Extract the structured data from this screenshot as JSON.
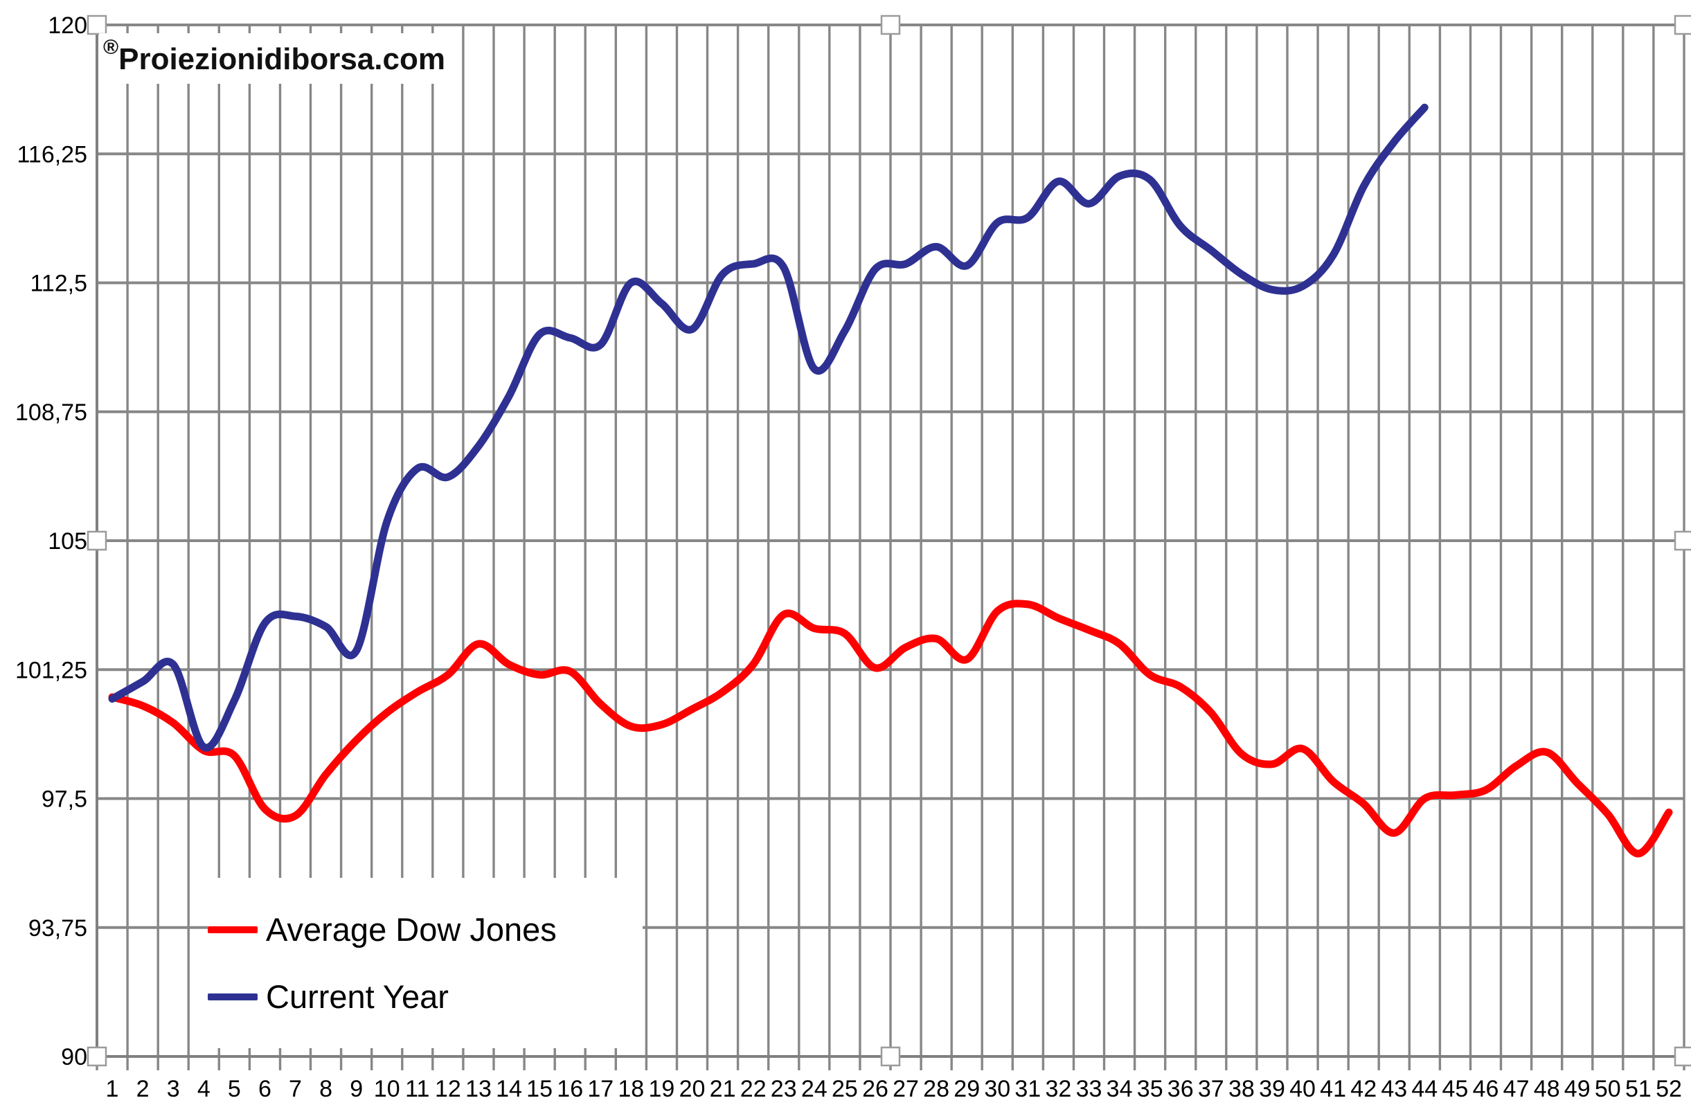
{
  "watermark": {
    "prefix": "®",
    "text": "Proiezionidiborsa.com"
  },
  "legend": {
    "items": [
      {
        "label": "Average Dow Jones",
        "color": "#FE0000"
      },
      {
        "label": "Current Year",
        "color": "#2E3192"
      }
    ]
  },
  "colors": {
    "grid": "#878787",
    "axis": "#808080",
    "background": "#ffffff",
    "handle_fill": "#ffffff",
    "handle_border": "#9B9B9B",
    "red_series": "#FE0000",
    "blue_series": "#2E3192"
  },
  "chart_data": {
    "type": "line",
    "title": "",
    "xlabel": "",
    "ylabel": "",
    "grid": true,
    "smooth": true,
    "legend_position": "bottom-left",
    "ylim": [
      90,
      120
    ],
    "y_tick_step": 3.75,
    "y_tick_labels": [
      "120",
      "116,25",
      "112,5",
      "108,75",
      "105",
      "101,25",
      "97,5",
      "93,75",
      "90"
    ],
    "y_tick_values": [
      120,
      116.25,
      112.5,
      108.75,
      105,
      101.25,
      97.5,
      93.75,
      90
    ],
    "categories": [
      1,
      2,
      3,
      4,
      5,
      6,
      7,
      8,
      9,
      10,
      11,
      12,
      13,
      14,
      15,
      16,
      17,
      18,
      19,
      20,
      21,
      22,
      23,
      24,
      25,
      26,
      27,
      28,
      29,
      30,
      31,
      32,
      33,
      34,
      35,
      36,
      37,
      38,
      39,
      40,
      41,
      42,
      43,
      44,
      45,
      46,
      47,
      48,
      49,
      50,
      51,
      52
    ],
    "series": [
      {
        "name": "Average Dow Jones",
        "color": "#FE0000",
        "values": [
          100.45,
          100.2,
          99.7,
          98.9,
          98.75,
          97.2,
          97.0,
          98.2,
          99.2,
          100.0,
          100.6,
          101.1,
          102.0,
          101.4,
          101.1,
          101.2,
          100.25,
          99.6,
          99.65,
          100.1,
          100.6,
          101.4,
          102.85,
          102.45,
          102.3,
          101.3,
          101.9,
          102.15,
          101.55,
          102.95,
          103.15,
          102.75,
          102.4,
          102.0,
          101.1,
          100.75,
          100.0,
          98.8,
          98.5,
          98.95,
          98.0,
          97.35,
          96.5,
          97.5,
          97.6,
          97.75,
          98.45,
          98.85,
          97.95,
          97.05,
          95.9,
          97.1
        ]
      },
      {
        "name": "Current Year",
        "color": "#2E3192",
        "values": [
          100.4,
          100.9,
          101.4,
          99.0,
          100.35,
          102.6,
          102.8,
          102.5,
          101.8,
          105.55,
          107.1,
          106.85,
          107.75,
          109.2,
          111.0,
          110.9,
          110.7,
          112.5,
          111.9,
          111.15,
          112.75,
          113.05,
          112.95,
          110.0,
          111.1,
          112.9,
          113.05,
          113.55,
          113.0,
          114.25,
          114.4,
          115.45,
          114.8,
          115.6,
          115.5,
          114.15,
          113.45,
          112.75,
          112.3,
          112.4,
          113.3,
          115.3,
          116.6,
          117.6
        ]
      }
    ]
  }
}
